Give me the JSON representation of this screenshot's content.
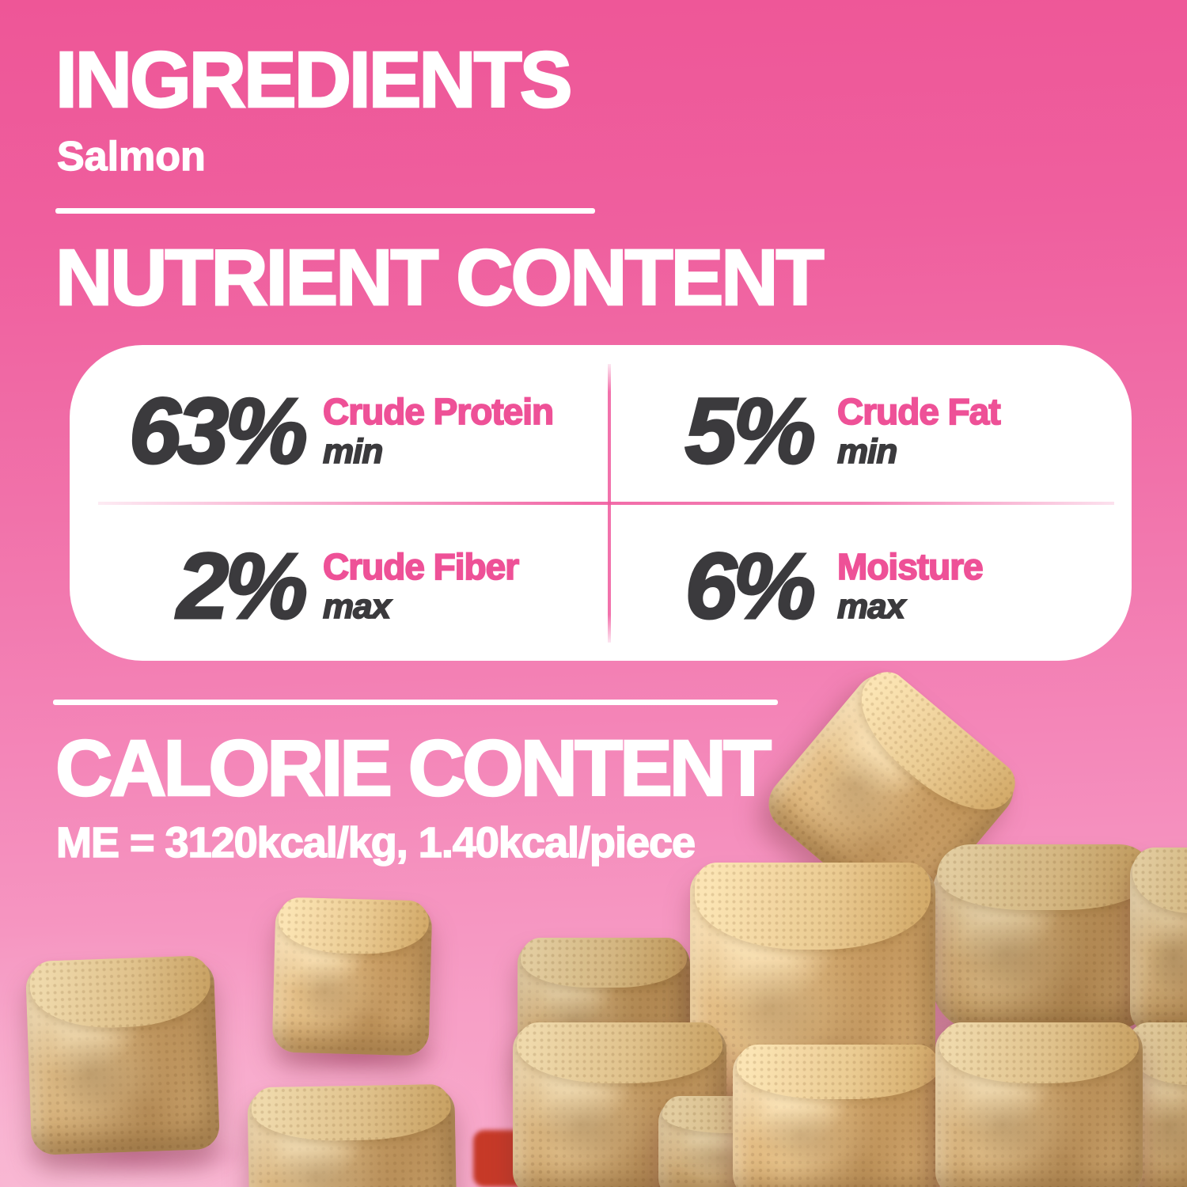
{
  "ingredients": {
    "title": "INGREDIENTS",
    "value": "Salmon"
  },
  "nutrients": {
    "title": "NUTRIENT CONTENT",
    "items": [
      {
        "value": "63%",
        "label": "Crude Protein",
        "qualifier": "min"
      },
      {
        "value": "5%",
        "label": "Crude Fat",
        "qualifier": "min"
      },
      {
        "value": "2%",
        "label": "Crude Fiber",
        "qualifier": "max"
      },
      {
        "value": "6%",
        "label": "Moisture",
        "qualifier": "max"
      }
    ]
  },
  "calories": {
    "title": "CALORIE CONTENT",
    "value": "ME = 3120kcal/kg, 1.40kcal/piece"
  },
  "colors": {
    "background_top": "#ee5697",
    "background_bottom": "#f8abcb",
    "accent_pink": "#ee5197",
    "number_dark": "#3b3a3d",
    "card_white": "#ffffff",
    "divider_white": "#ffffff",
    "treat_tan": "#d3ac74"
  }
}
